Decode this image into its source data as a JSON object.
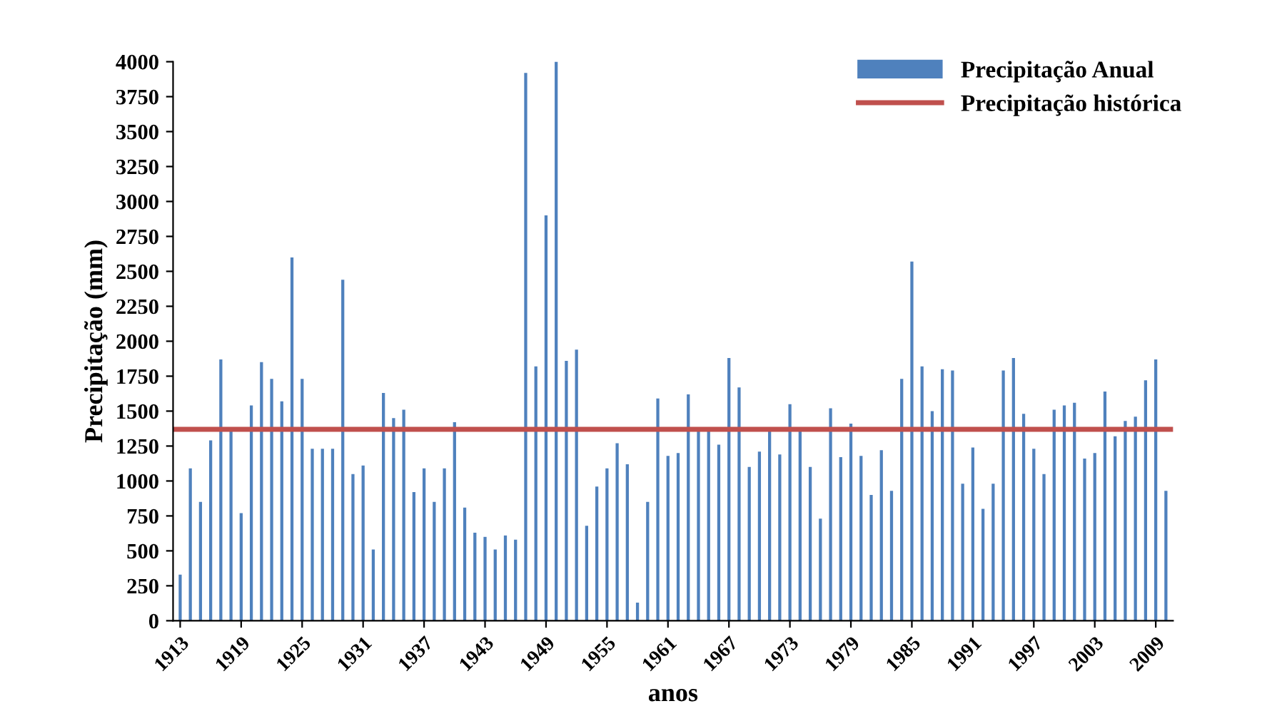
{
  "chart_data": {
    "type": "bar",
    "xlabel": "anos",
    "ylabel": "Precipitação (mm)",
    "categories": [
      "1913",
      null,
      null,
      null,
      null,
      null,
      "1919",
      null,
      null,
      null,
      null,
      null,
      "1925",
      null,
      null,
      null,
      null,
      null,
      "1931",
      null,
      null,
      null,
      null,
      null,
      "1937",
      null,
      null,
      null,
      null,
      null,
      "1943",
      null,
      null,
      null,
      null,
      null,
      "1949",
      null,
      null,
      null,
      null,
      null,
      "1955",
      null,
      null,
      null,
      null,
      null,
      "1961",
      null,
      null,
      null,
      null,
      null,
      "1967",
      null,
      null,
      null,
      null,
      null,
      "1973",
      null,
      null,
      null,
      null,
      null,
      "1979",
      null,
      null,
      null,
      null,
      null,
      "1985",
      null,
      null,
      null,
      null,
      null,
      "1991",
      null,
      null,
      null,
      null,
      null,
      "1997",
      null,
      null,
      null,
      null,
      null,
      "2003",
      null,
      null,
      null,
      null,
      null,
      "2009",
      null
    ],
    "series": [
      {
        "name": "Precipitação Anual",
        "color": "#4f81bd",
        "values": [
          330,
          1090,
          850,
          1290,
          1870,
          1380,
          770,
          1540,
          1850,
          1730,
          1570,
          2600,
          1730,
          1230,
          1230,
          1230,
          2440,
          1050,
          1110,
          510,
          1630,
          1450,
          1510,
          920,
          1090,
          850,
          1090,
          1420,
          810,
          630,
          600,
          510,
          610,
          580,
          3920,
          1820,
          2900,
          4000,
          1860,
          1940,
          680,
          960,
          1090,
          1270,
          1120,
          130,
          850,
          1590,
          1180,
          1200,
          1620,
          1360,
          1360,
          1260,
          1880,
          1670,
          1100,
          1210,
          1370,
          1190,
          1550,
          1360,
          1100,
          730,
          1520,
          1170,
          1410,
          1180,
          900,
          1220,
          930,
          1730,
          2570,
          1820,
          1500,
          1800,
          1790,
          980,
          1240,
          800,
          980,
          1790,
          1880,
          1480,
          1230,
          1050,
          1510,
          1540,
          1560,
          1160,
          1200,
          1640,
          1320,
          1430,
          1460,
          1720,
          1870,
          930
        ]
      }
    ],
    "ref_lines": [
      {
        "axis": "y",
        "value": 1370,
        "label": "Precipitação histórica",
        "color": "#c0504d",
        "line_style": "solid"
      }
    ],
    "ylim": [
      0,
      4000
    ],
    "yticks": [
      0,
      250,
      500,
      750,
      1000,
      1250,
      1500,
      1750,
      2000,
      2250,
      2500,
      2750,
      3000,
      3250,
      3500,
      3750,
      4000
    ],
    "legend": "top right"
  }
}
